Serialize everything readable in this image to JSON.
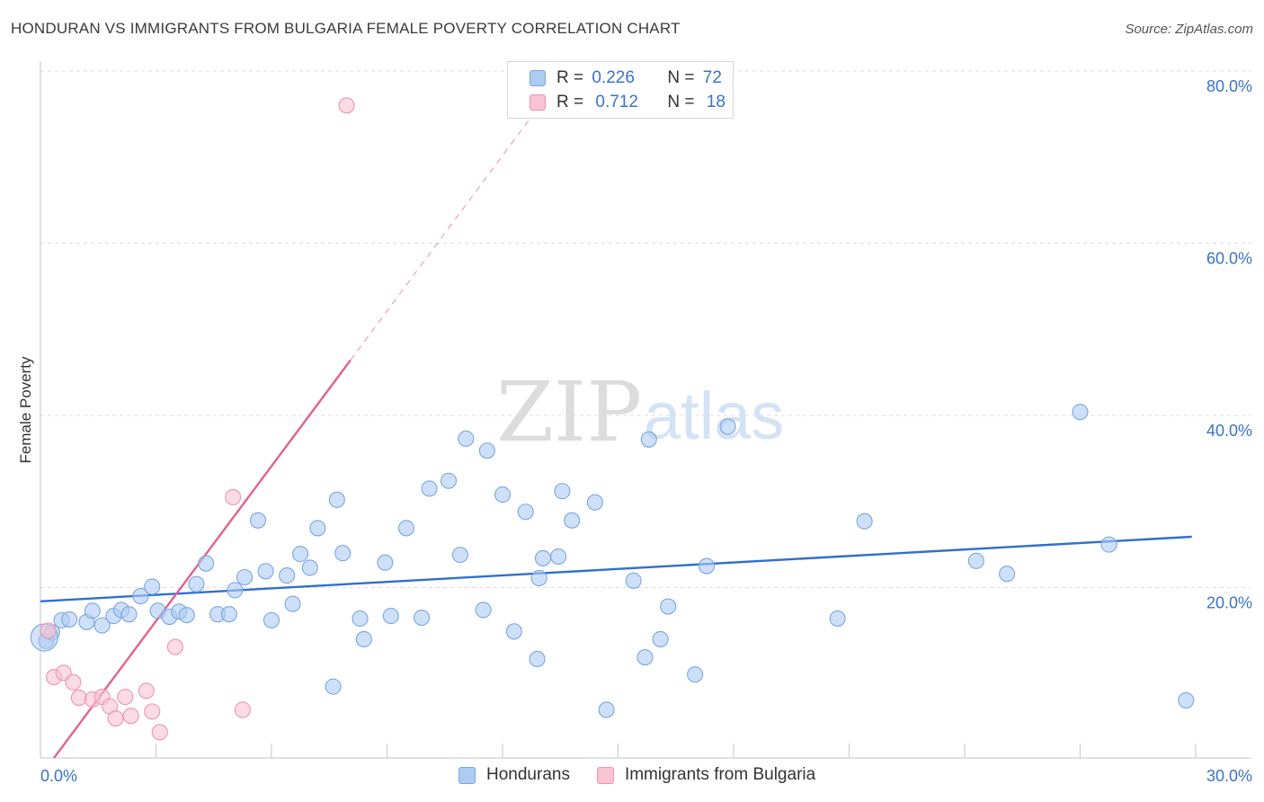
{
  "header": {
    "title": "HONDURAN VS IMMIGRANTS FROM BULGARIA FEMALE POVERTY CORRELATION CHART",
    "source": "Source: ZipAtlas.com"
  },
  "watermark": {
    "zip": "ZIP",
    "atlas": "atlas"
  },
  "legend": {
    "r_label": "R =",
    "n_label": "N =",
    "rows": [
      {
        "r": "0.226",
        "n": "72"
      },
      {
        "r": "0.712",
        "n": "18"
      }
    ]
  },
  "colors": {
    "hondurans_fill": "#aecbf2",
    "hondurans_stroke": "#7aa6de",
    "hondurans_line": "#2f6fcf",
    "bulgaria_fill": "#f8c3d2",
    "bulgaria_stroke": "#ee94b0",
    "bulgaria_line": "#e0628f",
    "tick_text": "#3a72c8"
  },
  "chart_data": {
    "type": "scatter",
    "title": "HONDURAN VS IMMIGRANTS FROM BULGARIA FEMALE POVERTY CORRELATION CHART",
    "xlabel": "",
    "ylabel": "Female Poverty",
    "xlim": [
      0,
      30
    ],
    "ylim": [
      0,
      80
    ],
    "x_tick_labels": [
      "0.0%",
      "30.0%"
    ],
    "y_tick_labels": [
      "20.0%",
      "40.0%",
      "60.0%",
      "80.0%"
    ],
    "y_ticks": [
      20,
      40,
      60,
      80
    ],
    "grid": true,
    "legend_position": "top-center and bottom",
    "series": [
      {
        "name": "Hondurans",
        "r": 0.226,
        "n": 72,
        "trend": {
          "x": [
            0,
            29.9
          ],
          "y": [
            18.4,
            25.9
          ],
          "style": "solid"
        },
        "points": [
          [
            0.15,
            13.8
          ],
          [
            0.3,
            14.8
          ],
          [
            0.55,
            16.2
          ],
          [
            0.75,
            16.3
          ],
          [
            1.2,
            16.0
          ],
          [
            1.35,
            17.3
          ],
          [
            1.6,
            15.6
          ],
          [
            1.9,
            16.7
          ],
          [
            2.1,
            17.4
          ],
          [
            2.3,
            16.9
          ],
          [
            2.6,
            19.0
          ],
          [
            2.9,
            20.1
          ],
          [
            3.05,
            17.3
          ],
          [
            3.35,
            16.6
          ],
          [
            3.6,
            17.2
          ],
          [
            3.8,
            16.8
          ],
          [
            4.05,
            20.4
          ],
          [
            4.3,
            22.8
          ],
          [
            4.6,
            16.9
          ],
          [
            4.9,
            16.9
          ],
          [
            5.05,
            19.7
          ],
          [
            5.3,
            21.2
          ],
          [
            5.65,
            27.8
          ],
          [
            5.85,
            21.9
          ],
          [
            6.0,
            16.2
          ],
          [
            6.4,
            21.4
          ],
          [
            6.55,
            18.1
          ],
          [
            6.75,
            23.9
          ],
          [
            7.0,
            22.3
          ],
          [
            7.2,
            26.9
          ],
          [
            7.6,
            8.5
          ],
          [
            7.7,
            30.2
          ],
          [
            7.85,
            24.0
          ],
          [
            8.3,
            16.4
          ],
          [
            8.4,
            14.0
          ],
          [
            8.95,
            22.9
          ],
          [
            9.1,
            16.7
          ],
          [
            9.5,
            26.9
          ],
          [
            9.9,
            16.5
          ],
          [
            10.1,
            31.5
          ],
          [
            10.6,
            32.4
          ],
          [
            10.9,
            23.8
          ],
          [
            11.05,
            37.3
          ],
          [
            11.5,
            17.4
          ],
          [
            11.6,
            35.9
          ],
          [
            12.0,
            30.8
          ],
          [
            12.3,
            14.9
          ],
          [
            12.6,
            28.8
          ],
          [
            12.9,
            11.7
          ],
          [
            12.95,
            21.1
          ],
          [
            13.05,
            23.4
          ],
          [
            13.45,
            23.6
          ],
          [
            13.55,
            31.2
          ],
          [
            13.8,
            27.8
          ],
          [
            14.4,
            29.9
          ],
          [
            14.7,
            5.8
          ],
          [
            15.4,
            20.8
          ],
          [
            15.7,
            11.9
          ],
          [
            15.8,
            37.2
          ],
          [
            16.1,
            14.0
          ],
          [
            16.3,
            17.8
          ],
          [
            17.0,
            9.9
          ],
          [
            17.3,
            22.5
          ],
          [
            17.85,
            38.7
          ],
          [
            20.7,
            16.4
          ],
          [
            21.4,
            27.7
          ],
          [
            24.3,
            23.1
          ],
          [
            25.1,
            21.6
          ],
          [
            27.0,
            40.4
          ],
          [
            27.75,
            25.0
          ],
          [
            29.75,
            6.9
          ],
          [
            0.1,
            14.2
          ]
        ]
      },
      {
        "name": "Immigrants from Bulgaria",
        "r": 0.712,
        "n": 18,
        "trend": {
          "x": [
            0.35,
            8.05
          ],
          "y": [
            0.2,
            46.4
          ],
          "style": "solid",
          "extended_to": [
            12.8,
            75.0
          ],
          "extended_style": "dashed"
        },
        "points": [
          [
            0.35,
            9.6
          ],
          [
            0.6,
            10.1
          ],
          [
            0.85,
            9.0
          ],
          [
            1.0,
            7.2
          ],
          [
            1.35,
            7.0
          ],
          [
            1.6,
            7.3
          ],
          [
            1.8,
            6.2
          ],
          [
            1.95,
            4.8
          ],
          [
            2.2,
            7.3
          ],
          [
            2.35,
            5.1
          ],
          [
            2.75,
            8.0
          ],
          [
            2.9,
            5.6
          ],
          [
            3.1,
            3.2
          ],
          [
            3.5,
            13.1
          ],
          [
            5.0,
            30.5
          ],
          [
            5.25,
            5.8
          ],
          [
            7.95,
            76.0
          ],
          [
            0.2,
            15.0
          ]
        ]
      }
    ]
  }
}
